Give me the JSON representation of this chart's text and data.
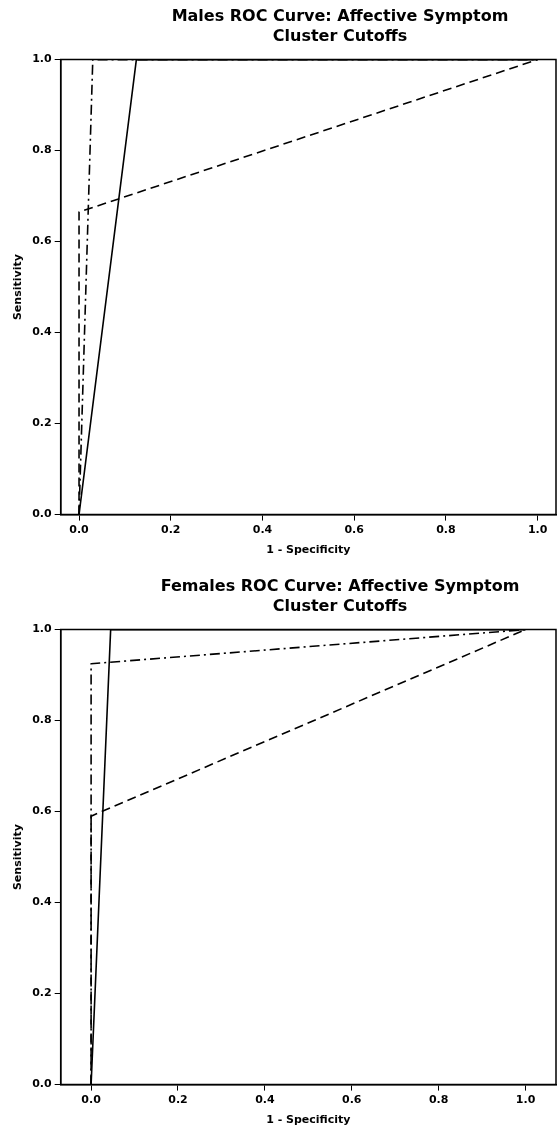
{
  "chart_data": [
    {
      "type": "line",
      "title": "Males ROC Curve: Affective Symptom Cluster Cutoffs",
      "xlabel": "1 - Specificity",
      "ylabel": "Sensitivity",
      "xlim": [
        -0.04,
        1.04
      ],
      "ylim": [
        0,
        1
      ],
      "xticks": [
        {
          "value": 0,
          "label": "0.0"
        },
        {
          "value": 0.2,
          "label": "0.2"
        },
        {
          "value": 0.4,
          "label": "0.4"
        },
        {
          "value": 0.6,
          "label": "0.6"
        },
        {
          "value": 0.8,
          "label": "0.8"
        },
        {
          "value": 1,
          "label": "1.0"
        }
      ],
      "yticks": [
        {
          "value": 0,
          "label": "0.0"
        },
        {
          "value": 0.2,
          "label": "0.2"
        },
        {
          "value": 0.4,
          "label": "0.4"
        },
        {
          "value": 0.6,
          "label": "0.6"
        },
        {
          "value": 0.8,
          "label": "0.8"
        },
        {
          "value": 1,
          "label": "1.0"
        }
      ],
      "grid": false,
      "legend": false,
      "marker": "none",
      "series": [
        {
          "color": "#000000",
          "line_style": "solid",
          "x": [
            0,
            0.125,
            1
          ],
          "values": [
            0,
            1,
            1
          ]
        },
        {
          "color": "#000000",
          "line_style": "dashed",
          "x": [
            0,
            0,
            1
          ],
          "values": [
            0,
            0.665,
            1
          ]
        },
        {
          "color": "#000000",
          "line_style": "dashdot",
          "x": [
            0,
            0.03,
            1
          ],
          "values": [
            0,
            1,
            1
          ]
        }
      ]
    },
    {
      "type": "line",
      "title": "Females ROC Curve: Affective Symptom Cluster Cutoffs",
      "xlabel": "1 - Specificity",
      "ylabel": "Sensitivity",
      "xlim": [
        -0.07,
        1.07
      ],
      "ylim": [
        0,
        1
      ],
      "xticks": [
        {
          "value": 0,
          "label": "0.0"
        },
        {
          "value": 0.2,
          "label": "0.2"
        },
        {
          "value": 0.4,
          "label": "0.4"
        },
        {
          "value": 0.6,
          "label": "0.6"
        },
        {
          "value": 0.8,
          "label": "0.8"
        },
        {
          "value": 1,
          "label": "1.0"
        }
      ],
      "yticks": [
        {
          "value": 0,
          "label": "0.0"
        },
        {
          "value": 0.2,
          "label": "0.2"
        },
        {
          "value": 0.4,
          "label": "0.4"
        },
        {
          "value": 0.6,
          "label": "0.6"
        },
        {
          "value": 0.8,
          "label": "0.8"
        },
        {
          "value": 1,
          "label": "1.0"
        }
      ],
      "grid": false,
      "legend": false,
      "marker": "none",
      "series": [
        {
          "color": "#000000",
          "line_style": "solid",
          "x": [
            0,
            0.045,
            1
          ],
          "values": [
            0,
            1,
            1
          ]
        },
        {
          "color": "#000000",
          "line_style": "dashed",
          "x": [
            0,
            0,
            1
          ],
          "values": [
            0,
            0.59,
            1
          ]
        },
        {
          "color": "#000000",
          "line_style": "dashdot",
          "x": [
            0,
            0,
            1
          ],
          "values": [
            0,
            0.925,
            1
          ]
        }
      ]
    }
  ]
}
